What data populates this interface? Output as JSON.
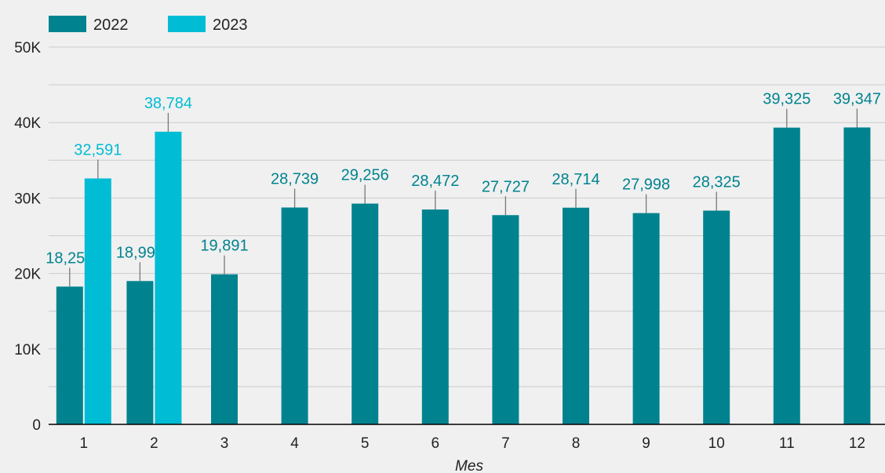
{
  "chart_data": {
    "type": "bar",
    "title": "",
    "xlabel": "Mes",
    "ylabel": "",
    "categories": [
      "1",
      "2",
      "3",
      "4",
      "5",
      "6",
      "7",
      "8",
      "9",
      "10",
      "11",
      "12"
    ],
    "series": [
      {
        "name": "2022",
        "color": "#00838f",
        "values": [
          18258,
          18994,
          19891,
          28739,
          29256,
          28472,
          27727,
          28714,
          27998,
          28325,
          39325,
          39347
        ],
        "labels": [
          "18,258",
          "18,994",
          "19,891",
          "28,739",
          "29,256",
          "28,472",
          "27,727",
          "28,714",
          "27,998",
          "28,325",
          "39,325",
          "39,347"
        ]
      },
      {
        "name": "2023",
        "color": "#00bcd4",
        "values": [
          32591,
          38784,
          null,
          null,
          null,
          null,
          null,
          null,
          null,
          null,
          null,
          null
        ],
        "labels": [
          "32,591",
          "38,784",
          null,
          null,
          null,
          null,
          null,
          null,
          null,
          null,
          null,
          null
        ]
      }
    ],
    "ylim": [
      0,
      50000
    ],
    "yticks": [
      0,
      10000,
      20000,
      30000,
      40000,
      50000
    ],
    "ytick_labels": [
      "0",
      "10K",
      "20K",
      "30K",
      "40K",
      "50K"
    ],
    "grid": true,
    "legend_position": "top-left",
    "gridline_color": "#cccccc",
    "axis_color": "#000000",
    "errorbar_color": "#777777"
  }
}
